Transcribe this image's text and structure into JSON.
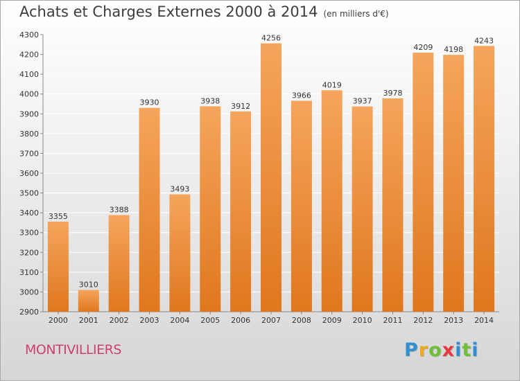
{
  "header": {
    "title": "Achats et Charges Externes 2000 à 2014",
    "subtitle": "(en milliers d'€)"
  },
  "city": "MONTIVILLIERS",
  "logo": {
    "letters": [
      "P",
      "r",
      "o",
      "x",
      "i",
      "t",
      "i"
    ],
    "colors": [
      "#2f8fd1",
      "#f0a81c",
      "#6fbf3a",
      "#e8373f",
      "#2f8fd1",
      "#6fbf3a",
      "#2f8fd1"
    ]
  },
  "colors": {
    "bar_light": "#f5a55c",
    "bar_dark": "#e0771e",
    "grid": "#ffffff",
    "axis": "#888888"
  },
  "chart_data": {
    "type": "bar",
    "title": "Achats et Charges Externes 2000 à 2014",
    "subtitle": "(en milliers d'€)",
    "categories": [
      "2000",
      "2001",
      "2002",
      "2003",
      "2004",
      "2005",
      "2006",
      "2007",
      "2008",
      "2009",
      "2010",
      "2011",
      "2012",
      "2013",
      "2014"
    ],
    "values": [
      3355,
      3010,
      3388,
      3930,
      3493,
      3938,
      3912,
      4256,
      3966,
      4019,
      3937,
      3978,
      4209,
      4198,
      4243
    ],
    "value_labels": [
      "3355",
      "3010",
      "3388",
      "3930",
      "3493",
      "3938",
      "3912",
      "4256",
      "3966",
      "4019",
      "3937",
      "3978",
      "4209",
      "4198",
      "4243"
    ],
    "ylim": [
      2900,
      4300
    ],
    "yticks": [
      2900,
      3000,
      3100,
      3200,
      3300,
      3400,
      3500,
      3600,
      3700,
      3800,
      3900,
      4000,
      4100,
      4200,
      4300
    ],
    "grid": true,
    "xlabel": "",
    "ylabel": ""
  }
}
